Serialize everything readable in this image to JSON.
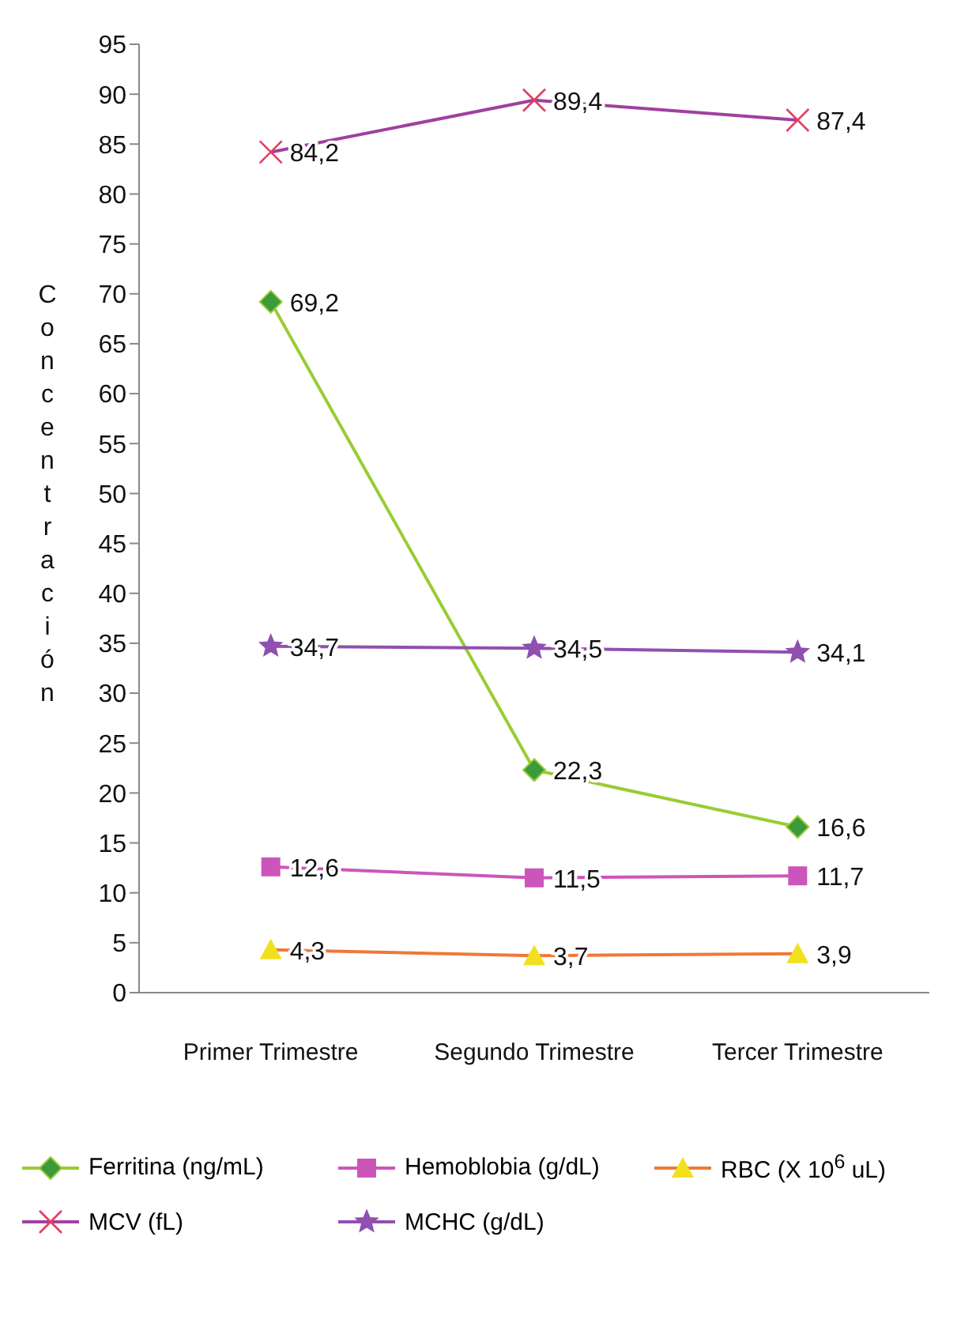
{
  "chart_data": {
    "type": "line",
    "ylabel": "Concentración",
    "categories": [
      "Primer Trimestre",
      "Segundo Trimestre",
      "Tercer Trimestre"
    ],
    "ylim": [
      0,
      95
    ],
    "yticks": [
      0,
      5,
      10,
      15,
      20,
      25,
      30,
      35,
      40,
      45,
      50,
      55,
      60,
      65,
      70,
      75,
      80,
      85,
      90,
      95
    ],
    "grid": false,
    "legend": "bottom",
    "series": [
      {
        "name": "Ferritina (ng/mL)",
        "color": "#99cc33",
        "marker": "diamond",
        "values": [
          69.2,
          22.3,
          16.6
        ],
        "value_labels": [
          "69,2",
          "22,3",
          "16,6"
        ]
      },
      {
        "name": "Hemoblobia (g/dL)",
        "color": "#cc55bb",
        "marker": "square",
        "values": [
          12.6,
          11.5,
          11.7
        ],
        "value_labels": [
          "12,6",
          "11,5",
          "11,7"
        ]
      },
      {
        "name": "RBC (X 10$^{6}$ uL)",
        "color": "#f07838",
        "marker": "triangle",
        "values": [
          4.3,
          3.7,
          3.9
        ],
        "value_labels": [
          "4,3",
          "3,7",
          "3,9"
        ]
      },
      {
        "name": "MCV (fL)",
        "color": "#a040a0",
        "marker": "cross",
        "values": [
          84.2,
          89.4,
          87.4
        ],
        "value_labels": [
          "84,2",
          "89,4",
          "87,4"
        ]
      },
      {
        "name": "MCHC (g/dL)",
        "color": "#9050b0",
        "marker": "star",
        "values": [
          34.7,
          34.5,
          34.1
        ],
        "value_labels": [
          "34,7",
          "34,5",
          "34,1"
        ]
      }
    ]
  }
}
